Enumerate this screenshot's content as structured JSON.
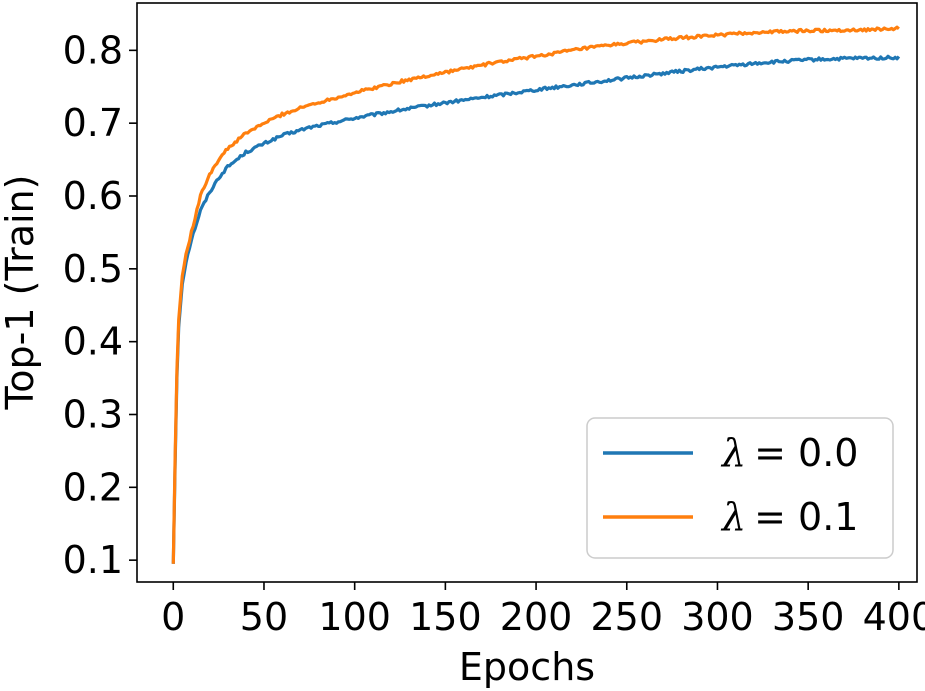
{
  "chart_data": {
    "type": "line",
    "title": "",
    "xlabel": "Epochs",
    "ylabel": "Top-1 (Train)",
    "xlim": [
      -20,
      410
    ],
    "ylim": [
      0.07,
      0.865
    ],
    "xticks": [
      0,
      50,
      100,
      150,
      200,
      250,
      300,
      350,
      400
    ],
    "yticks": [
      0.1,
      0.2,
      0.3,
      0.4,
      0.5,
      0.6,
      0.7,
      0.8
    ],
    "ytick_labels": [
      "0.1",
      "0.2",
      "0.3",
      "0.4",
      "0.5",
      "0.6",
      "0.7",
      "0.8"
    ],
    "xtick_labels": [
      "0",
      "50",
      "100",
      "150",
      "200",
      "250",
      "300",
      "350",
      "400"
    ],
    "grid": false,
    "legend_position": "bottom-right",
    "series": [
      {
        "name": "λ = 0.0",
        "legend_symbol": "λ",
        "legend_value": "= 0.0",
        "color": "#1f77b4",
        "x": [
          0,
          1,
          2,
          3,
          5,
          7,
          10,
          15,
          20,
          25,
          30,
          40,
          50,
          60,
          75,
          100,
          125,
          150,
          175,
          200,
          225,
          250,
          275,
          300,
          325,
          350,
          375,
          400
        ],
        "values": [
          0.095,
          0.23,
          0.35,
          0.42,
          0.48,
          0.51,
          0.54,
          0.58,
          0.605,
          0.625,
          0.64,
          0.66,
          0.672,
          0.683,
          0.694,
          0.707,
          0.718,
          0.728,
          0.737,
          0.746,
          0.754,
          0.762,
          0.77,
          0.777,
          0.783,
          0.787,
          0.789,
          0.79
        ]
      },
      {
        "name": "λ = 0.1",
        "legend_symbol": "λ",
        "legend_value": "= 0.1",
        "color": "#ff7f0e",
        "x": [
          0,
          1,
          2,
          3,
          5,
          7,
          10,
          15,
          20,
          25,
          30,
          40,
          50,
          60,
          75,
          100,
          125,
          150,
          175,
          200,
          225,
          250,
          275,
          300,
          325,
          350,
          375,
          400
        ],
        "values": [
          0.095,
          0.24,
          0.36,
          0.43,
          0.49,
          0.52,
          0.55,
          0.6,
          0.63,
          0.65,
          0.665,
          0.686,
          0.7,
          0.712,
          0.725,
          0.742,
          0.757,
          0.77,
          0.782,
          0.792,
          0.802,
          0.81,
          0.816,
          0.821,
          0.825,
          0.827,
          0.828,
          0.83
        ]
      }
    ]
  }
}
